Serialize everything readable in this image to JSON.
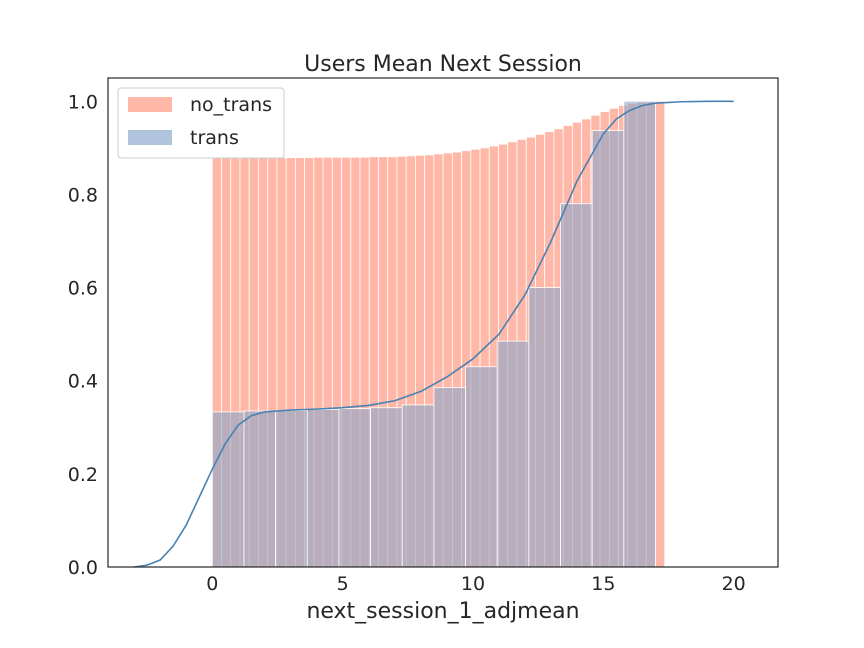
{
  "chart_data": {
    "type": "histogram",
    "title": "Users Mean Next Session",
    "xlabel": "next_session_1_adjmean",
    "ylabel": "",
    "xlim": [
      -4,
      21.7
    ],
    "ylim": [
      0,
      1.05
    ],
    "x_ticks": [
      "0",
      "5",
      "10",
      "15",
      "20"
    ],
    "y_ticks": [
      "0.0",
      "0.2",
      "0.4",
      "0.6",
      "0.8",
      "1.0"
    ],
    "grid": false,
    "legend": "top-left",
    "colors": {
      "no_trans": "#ffb8a8",
      "trans": "#b0c4de",
      "overlap": "#b3a5b9",
      "kde_line": "#4682b4"
    },
    "series": [
      {
        "name": "no_trans",
        "style": "cumulative-histogram",
        "bin_start": 0,
        "bin_width": 0.3542,
        "values": [
          0.879,
          0.879,
          0.879,
          0.879,
          0.879,
          0.879,
          0.879,
          0.879,
          0.879,
          0.879,
          0.879,
          0.88,
          0.88,
          0.88,
          0.88,
          0.88,
          0.88,
          0.881,
          0.881,
          0.881,
          0.882,
          0.883,
          0.884,
          0.885,
          0.887,
          0.889,
          0.891,
          0.894,
          0.897,
          0.9,
          0.904,
          0.908,
          0.913,
          0.918,
          0.923,
          0.929,
          0.935,
          0.941,
          0.948,
          0.955,
          0.962,
          0.97,
          0.978,
          0.985,
          0.991,
          0.995,
          0.998,
          0.999,
          1.0
        ]
      },
      {
        "name": "trans",
        "style": "cumulative-histogram",
        "bin_start": 0,
        "bin_width": 1.2143,
        "values": [
          0.333,
          0.335,
          0.336,
          0.338,
          0.34,
          0.342,
          0.348,
          0.385,
          0.43,
          0.485,
          0.6,
          0.78,
          0.937,
          1.0
        ]
      },
      {
        "name": "trans_kde",
        "style": "cumulative-kde-line",
        "x": [
          -3.0,
          -2.5,
          -2.0,
          -1.5,
          -1.0,
          -0.5,
          0.0,
          0.5,
          1.0,
          1.5,
          2.0,
          3.0,
          4.0,
          5.0,
          6.0,
          7.0,
          8.0,
          9.0,
          10.0,
          11.0,
          12.0,
          13.0,
          14.0,
          15.0,
          15.5,
          16.0,
          16.5,
          17.0,
          18.0,
          19.0,
          20.0
        ],
        "y": [
          0.0,
          0.004,
          0.015,
          0.045,
          0.09,
          0.15,
          0.21,
          0.265,
          0.305,
          0.325,
          0.333,
          0.337,
          0.339,
          0.342,
          0.347,
          0.357,
          0.377,
          0.408,
          0.447,
          0.5,
          0.585,
          0.7,
          0.83,
          0.93,
          0.962,
          0.98,
          0.991,
          0.996,
          0.999,
          1.0,
          1.0
        ]
      }
    ]
  }
}
